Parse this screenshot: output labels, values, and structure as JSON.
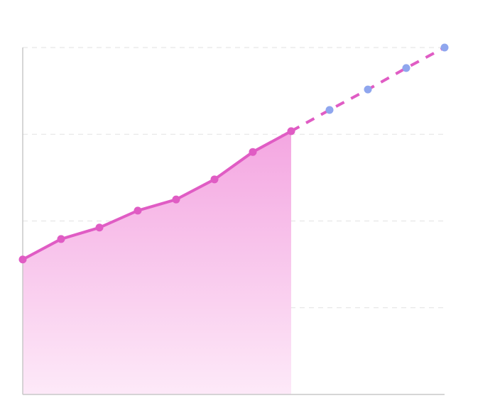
{
  "chart_data": {
    "type": "area-forecast",
    "categories": [
      null,
      null,
      null,
      null,
      null,
      null,
      null,
      null,
      null,
      null,
      null,
      null
    ],
    "ylim": [
      0,
      100
    ],
    "yticks": [
      0,
      25,
      50,
      75,
      100
    ],
    "grid": true,
    "series": [
      {
        "color": "#e05cc4",
        "values": [
          38.9,
          44.8,
          48.1,
          53.0,
          56.2,
          62.0,
          69.9,
          75.9,
          null,
          null,
          null,
          null
        ]
      },
      {
        "color": "#8fa6ee",
        "values": [
          null,
          null,
          null,
          null,
          null,
          null,
          null,
          null,
          82.0,
          87.9,
          94.1,
          100
        ]
      }
    ]
  }
}
